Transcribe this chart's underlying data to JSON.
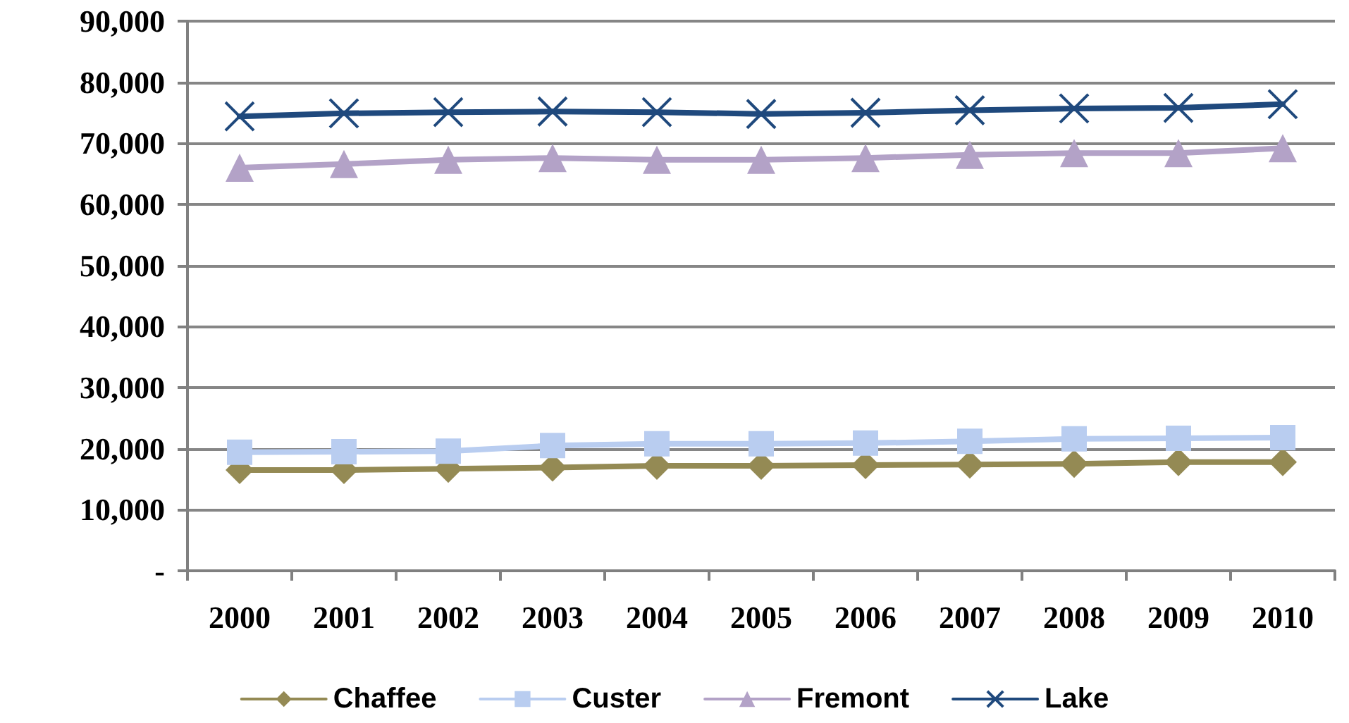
{
  "chart_data": {
    "type": "line",
    "categories": [
      "2000",
      "2001",
      "2002",
      "2003",
      "2004",
      "2005",
      "2006",
      "2007",
      "2008",
      "2009",
      "2010"
    ],
    "series": [
      {
        "name": "Chaffee",
        "color": "#948a54",
        "marker": "diamond",
        "values": [
          16500,
          16500,
          16700,
          16900,
          17200,
          17200,
          17300,
          17400,
          17500,
          17800,
          17800
        ]
      },
      {
        "name": "Custer",
        "color": "#b9cdf0",
        "marker": "square",
        "values": [
          19400,
          19500,
          19600,
          20500,
          20800,
          20800,
          20900,
          21200,
          21600,
          21700,
          21800
        ]
      },
      {
        "name": "Fremont",
        "color": "#b3a2c7",
        "marker": "triangle",
        "values": [
          66000,
          66600,
          67300,
          67600,
          67300,
          67300,
          67600,
          68100,
          68400,
          68400,
          69200
        ]
      },
      {
        "name": "Lake",
        "color": "#1f497d",
        "marker": "cross",
        "values": [
          74400,
          74900,
          75100,
          75200,
          75100,
          74800,
          75000,
          75400,
          75700,
          75800,
          76400
        ]
      }
    ],
    "ylim": [
      0,
      90000
    ],
    "yticks": [
      {
        "value": 0,
        "label": "-"
      },
      {
        "value": 10000,
        "label": "10,000"
      },
      {
        "value": 20000,
        "label": "20,000"
      },
      {
        "value": 30000,
        "label": "30,000"
      },
      {
        "value": 40000,
        "label": "40,000"
      },
      {
        "value": 50000,
        "label": "50,000"
      },
      {
        "value": 60000,
        "label": "60,000"
      },
      {
        "value": 70000,
        "label": "70,000"
      },
      {
        "value": 80000,
        "label": "80,000"
      },
      {
        "value": 90000,
        "label": "90,000"
      }
    ],
    "grid": "y",
    "legend": "bottom",
    "line_style": "solid"
  }
}
